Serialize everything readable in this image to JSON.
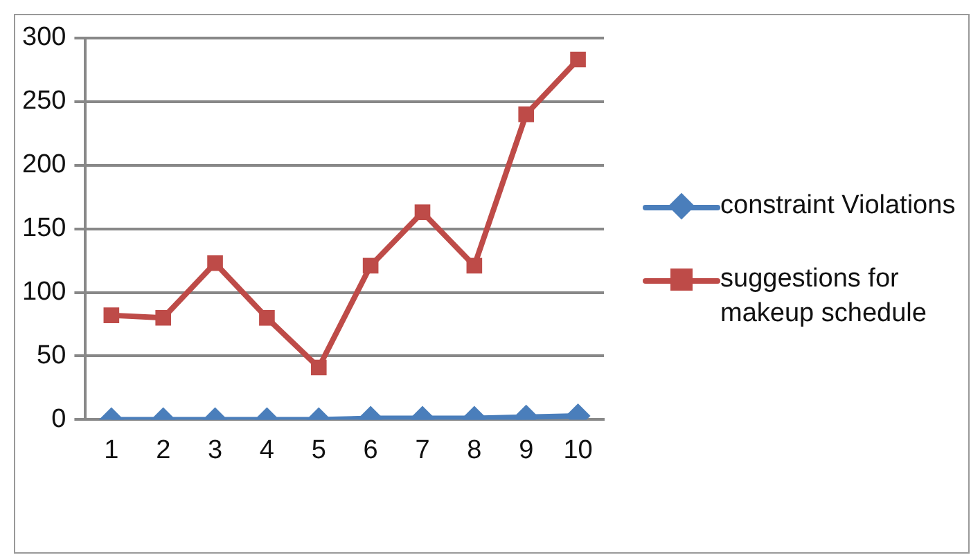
{
  "chart_data": {
    "type": "line",
    "categories": [
      "1",
      "2",
      "3",
      "4",
      "5",
      "6",
      "7",
      "8",
      "9",
      "10"
    ],
    "series": [
      {
        "name": "constraint Violations",
        "color": "#4a7ebb",
        "marker": "diamond",
        "values": [
          0,
          0,
          0,
          0,
          0,
          1,
          1,
          1,
          2,
          3
        ]
      },
      {
        "name": "suggestions for makeup schedule",
        "color": "#be4b48",
        "marker": "square",
        "values": [
          82,
          80,
          123,
          80,
          41,
          121,
          163,
          121,
          240,
          283
        ]
      }
    ],
    "ylim": [
      0,
      300
    ],
    "yticks": [
      0,
      50,
      100,
      150,
      200,
      250,
      300
    ],
    "grid": "y",
    "legend": "right"
  }
}
